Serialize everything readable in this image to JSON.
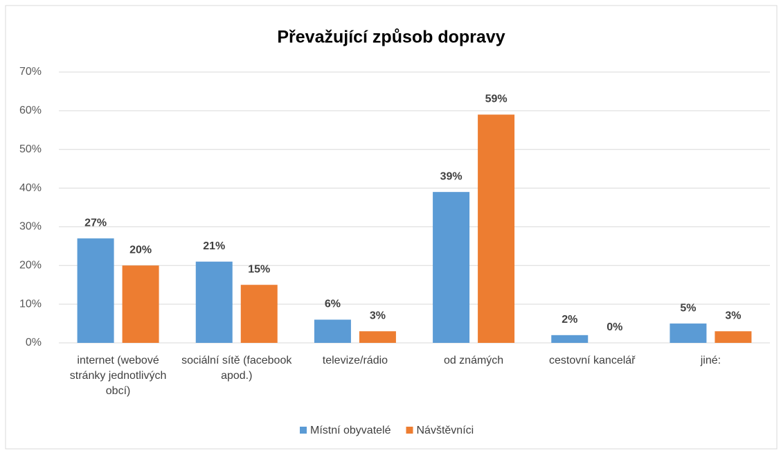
{
  "chart_data": {
    "type": "bar",
    "title": "Převažující způsob dopravy",
    "categories": [
      "internet (webové stránky jednotlivých obcí)",
      "sociální sítě (facebook apod.)",
      "televize/rádio",
      "od známých",
      "cestovní kancelář",
      "jiné:"
    ],
    "series": [
      {
        "name": "Místní obyvatelé",
        "color": "#5b9bd5",
        "values": [
          27,
          21,
          6,
          39,
          2,
          5
        ],
        "value_labels": [
          "27%",
          "21%",
          "6%",
          "39%",
          "2%",
          "5%"
        ]
      },
      {
        "name": "Návštěvníci",
        "color": "#ed7d31",
        "values": [
          20,
          15,
          3,
          59,
          0,
          3
        ],
        "value_labels": [
          "20%",
          "15%",
          "3%",
          "59%",
          "0%",
          "3%"
        ]
      }
    ],
    "ylim": [
      0,
      70
    ],
    "yticks": [
      {
        "value": 0,
        "label": "0%"
      },
      {
        "value": 10,
        "label": "10%"
      },
      {
        "value": 20,
        "label": "20%"
      },
      {
        "value": 30,
        "label": "30%"
      },
      {
        "value": 40,
        "label": "40%"
      },
      {
        "value": 50,
        "label": "50%"
      },
      {
        "value": 60,
        "label": "60%"
      },
      {
        "value": 70,
        "label": "70%"
      }
    ],
    "grid": true,
    "legend": "bottom"
  }
}
